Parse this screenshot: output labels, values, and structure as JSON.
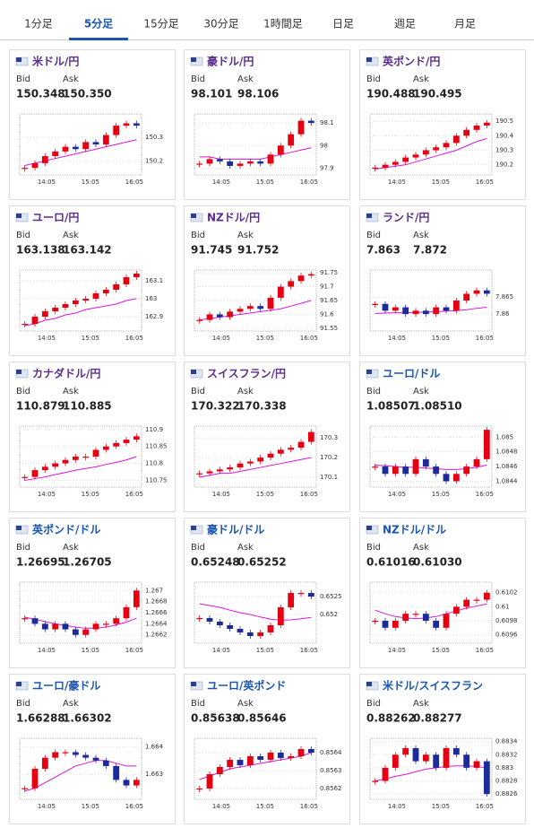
{
  "tabs": [
    "1分足",
    "5分足",
    "15分足",
    "30分足",
    "1時間足",
    "日足",
    "週足",
    "月足"
  ],
  "colors": {
    "up": "#e60012",
    "down": "#1c2a9c",
    "ma": "#d916d9"
  },
  "cards": [
    {
      "name": "米ドル/円",
      "bid_label": "Bid",
      "ask_label": "Ask",
      "bid": "150.348",
      "ask": "150.350",
      "chart": {
        "type": "candlestick",
        "ylim": [
          150.14,
          150.4
        ],
        "yticks": [
          150.2,
          150.3
        ],
        "xticks": [
          "14:05",
          "15:05",
          "16:05"
        ],
        "closes": [
          150.17,
          150.19,
          150.22,
          150.24,
          150.26,
          150.25,
          150.28,
          150.27,
          150.31,
          150.35,
          150.36,
          150.35
        ],
        "ma": [
          150.18,
          150.19,
          150.2,
          150.21,
          150.22,
          150.23,
          150.24,
          150.25,
          150.26,
          150.27,
          150.28,
          150.29
        ]
      }
    },
    {
      "name": "豪ドル/円",
      "bid_label": "Bid",
      "ask_label": "Ask",
      "bid": "98.101",
      "ask": "98.106",
      "chart": {
        "type": "candlestick",
        "ylim": [
          97.87,
          98.14
        ],
        "yticks": [
          97.9,
          98,
          98.1
        ],
        "xticks": [
          "14:05",
          "15:05",
          "16:05"
        ],
        "closes": [
          97.92,
          97.94,
          97.93,
          97.91,
          97.92,
          97.93,
          97.92,
          97.96,
          98.0,
          98.05,
          98.11,
          98.1
        ],
        "ma": [
          97.95,
          97.95,
          97.94,
          97.94,
          97.94,
          97.94,
          97.94,
          97.95,
          97.96,
          97.97,
          97.98,
          97.99
        ]
      }
    },
    {
      "name": "英ポンド/円",
      "bid_label": "Bid",
      "ask_label": "Ask",
      "bid": "190.488",
      "ask": "190.495",
      "chart": {
        "type": "candlestick",
        "ylim": [
          190.13,
          190.55
        ],
        "yticks": [
          190.2,
          190.3,
          190.4,
          190.5
        ],
        "xticks": [
          "14:05",
          "15:05",
          "16:05"
        ],
        "closes": [
          190.18,
          190.2,
          190.22,
          190.25,
          190.27,
          190.3,
          190.32,
          190.35,
          190.4,
          190.44,
          190.47,
          190.49
        ],
        "ma": [
          190.17,
          190.18,
          190.19,
          190.2,
          190.22,
          190.24,
          190.26,
          190.28,
          190.3,
          190.33,
          190.36,
          190.38
        ]
      }
    },
    {
      "name": "ユーロ/円",
      "bid_label": "Bid",
      "ask_label": "Ask",
      "bid": "163.138",
      "ask": "163.142",
      "chart": {
        "type": "candlestick",
        "ylim": [
          162.82,
          163.16
        ],
        "yticks": [
          162.9,
          163,
          163.1
        ],
        "xticks": [
          "14:05",
          "15:05",
          "16:05"
        ],
        "closes": [
          162.86,
          162.9,
          162.93,
          162.95,
          162.97,
          162.99,
          163.0,
          163.03,
          163.05,
          163.08,
          163.12,
          163.14
        ],
        "ma": [
          162.85,
          162.86,
          162.88,
          162.89,
          162.91,
          162.92,
          162.94,
          162.95,
          162.96,
          162.97,
          162.99,
          163.0
        ]
      }
    },
    {
      "name": "NZドル/円",
      "bid_label": "Bid",
      "ask_label": "Ask",
      "bid": "91.745",
      "ask": "91.752",
      "chart": {
        "type": "candlestick",
        "ylim": [
          91.54,
          91.76
        ],
        "yticks": [
          91.55,
          91.6,
          91.65,
          91.7,
          91.75
        ],
        "xticks": [
          "14:05",
          "15:05",
          "16:05"
        ],
        "closes": [
          91.58,
          91.6,
          91.59,
          91.61,
          91.62,
          91.63,
          91.62,
          91.66,
          91.7,
          91.72,
          91.74,
          91.745
        ],
        "ma": [
          91.58,
          91.585,
          91.59,
          91.595,
          91.6,
          91.605,
          91.61,
          91.615,
          91.62,
          91.63,
          91.64,
          91.65
        ]
      }
    },
    {
      "name": "ランド/円",
      "bid_label": "Bid",
      "ask_label": "Ask",
      "bid": "7.863",
      "ask": "7.872",
      "chart": {
        "type": "candlestick",
        "ylim": [
          7.855,
          7.873
        ],
        "yticks": [
          7.86,
          7.865
        ],
        "xticks": [
          "14:05",
          "15:05",
          "16:05"
        ],
        "closes": [
          7.863,
          7.861,
          7.862,
          7.86,
          7.861,
          7.86,
          7.862,
          7.861,
          7.864,
          7.866,
          7.867,
          7.866
        ],
        "ma": [
          7.8602,
          7.8603,
          7.8604,
          7.8604,
          7.8605,
          7.8606,
          7.8607,
          7.8609,
          7.861,
          7.8613,
          7.8617,
          7.862
        ]
      }
    },
    {
      "name": "カナダドル/円",
      "bid_label": "Bid",
      "ask_label": "Ask",
      "bid": "110.879",
      "ask": "110.885",
      "chart": {
        "type": "candlestick",
        "ylim": [
          110.73,
          110.91
        ],
        "yticks": [
          110.75,
          110.8,
          110.85,
          110.9
        ],
        "xticks": [
          "14:05",
          "15:05",
          "16:05"
        ],
        "closes": [
          110.76,
          110.78,
          110.79,
          110.8,
          110.81,
          110.82,
          110.82,
          110.84,
          110.85,
          110.86,
          110.87,
          110.88
        ],
        "ma": [
          110.75,
          110.755,
          110.76,
          110.767,
          110.773,
          110.78,
          110.785,
          110.79,
          110.797,
          110.803,
          110.81,
          110.82
        ]
      }
    },
    {
      "name": "スイスフラン/円",
      "bid_label": "Bid",
      "ask_label": "Ask",
      "bid": "170.322",
      "ask": "170.338",
      "chart": {
        "type": "candlestick",
        "ylim": [
          170.05,
          170.36
        ],
        "yticks": [
          170.1,
          170.2,
          170.3
        ],
        "xticks": [
          "14:05",
          "15:05",
          "16:05"
        ],
        "closes": [
          170.12,
          170.13,
          170.14,
          170.15,
          170.17,
          170.18,
          170.2,
          170.22,
          170.24,
          170.25,
          170.28,
          170.33
        ],
        "ma": [
          170.1,
          170.11,
          170.12,
          170.12,
          170.13,
          170.14,
          170.15,
          170.16,
          170.17,
          170.18,
          170.19,
          170.2
        ]
      }
    },
    {
      "name": "ユーロ/ドル",
      "bid_label": "Bid",
      "ask_label": "Ask",
      "bid": "1.08507",
      "ask": "1.08510",
      "chart": {
        "type": "candlestick",
        "ylim": [
          1.08432,
          1.08515
        ],
        "yticks": [
          1.0844,
          1.0846,
          1.0848,
          1.085
        ],
        "xticks": [
          "14:05",
          "15:05",
          "16:05"
        ],
        "closes": [
          1.0846,
          1.0845,
          1.0846,
          1.0845,
          1.0847,
          1.0846,
          1.0845,
          1.0844,
          1.0845,
          1.0846,
          1.0847,
          1.0851
        ],
        "ma": [
          1.08462,
          1.08461,
          1.0846,
          1.08459,
          1.08459,
          1.08458,
          1.08457,
          1.08456,
          1.08456,
          1.08457,
          1.08459,
          1.08462
        ]
      }
    },
    {
      "name": "英ポンド/ドル",
      "bid_label": "Bid",
      "ask_label": "Ask",
      "bid": "1.26695",
      "ask": "1.26705",
      "chart": {
        "type": "candlestick",
        "ylim": [
          1.26605,
          1.26715
        ],
        "yticks": [
          1.2662,
          1.2664,
          1.2666,
          1.2668,
          1.267
        ],
        "xticks": [
          "14:05",
          "15:05",
          "16:05"
        ],
        "closes": [
          1.2665,
          1.2664,
          1.2663,
          1.2664,
          1.2663,
          1.2662,
          1.2663,
          1.2664,
          1.2664,
          1.2665,
          1.2667,
          1.267
        ],
        "ma": [
          1.26652,
          1.26648,
          1.26644,
          1.2664,
          1.26637,
          1.26634,
          1.26632,
          1.26632,
          1.26634,
          1.26638,
          1.26643,
          1.2665
        ]
      }
    },
    {
      "name": "豪ドル/ドル",
      "bid_label": "Bid",
      "ask_label": "Ask",
      "bid": "0.65248",
      "ask": "0.65252",
      "chart": {
        "type": "candlestick",
        "ylim": [
          0.6512,
          0.6529
        ],
        "yticks": [
          0.652,
          0.6525
        ],
        "xticks": [
          "14:05",
          "15:05",
          "16:05"
        ],
        "closes": [
          0.6519,
          0.6518,
          0.6517,
          0.6516,
          0.6515,
          0.6514,
          0.6515,
          0.6517,
          0.6522,
          0.6526,
          0.6526,
          0.6525
        ],
        "ma": [
          0.6523,
          0.65225,
          0.6522,
          0.65212,
          0.65205,
          0.652,
          0.65193,
          0.65187,
          0.65184,
          0.65185,
          0.65188,
          0.65192
        ]
      }
    },
    {
      "name": "NZドル/ドル",
      "bid_label": "Bid",
      "ask_label": "Ask",
      "bid": "0.61016",
      "ask": "0.61030",
      "chart": {
        "type": "candlestick",
        "ylim": [
          0.60948,
          0.61035
        ],
        "yticks": [
          0.6096,
          0.6098,
          0.61,
          0.6102
        ],
        "xticks": [
          "14:05",
          "15:05",
          "16:05"
        ],
        "closes": [
          0.6098,
          0.6097,
          0.6098,
          0.6099,
          0.6099,
          0.6098,
          0.6097,
          0.6099,
          0.61,
          0.6101,
          0.6101,
          0.6102
        ],
        "ma": [
          0.60995,
          0.6099,
          0.60986,
          0.60984,
          0.60983,
          0.60984,
          0.60986,
          0.6099,
          0.60994,
          0.60998,
          0.61001,
          0.61004
        ]
      }
    },
    {
      "name": "ユーロ/豪ドル",
      "bid_label": "Bid",
      "ask_label": "Ask",
      "bid": "1.66288",
      "ask": "1.66302",
      "chart": {
        "type": "candlestick",
        "ylim": [
          1.6621,
          1.6643
        ],
        "yticks": [
          1.663,
          1.664
        ],
        "xticks": [
          "14:05",
          "15:05",
          "16:05"
        ],
        "closes": [
          1.6625,
          1.6632,
          1.6636,
          1.6638,
          1.6638,
          1.6637,
          1.6636,
          1.6635,
          1.6633,
          1.6628,
          1.6626,
          1.6628
        ],
        "ma": [
          1.6624,
          1.6625,
          1.6627,
          1.6629,
          1.6631,
          1.6633,
          1.6634,
          1.6635,
          1.6635,
          1.6634,
          1.6633,
          1.6633
        ]
      }
    },
    {
      "name": "ユーロ/英ポンド",
      "bid_label": "Bid",
      "ask_label": "Ask",
      "bid": "0.85638",
      "ask": "0.85646",
      "chart": {
        "type": "candlestick",
        "ylim": [
          0.85614,
          0.85648
        ],
        "yticks": [
          0.8562,
          0.8563,
          0.8564
        ],
        "xticks": [
          "14:05",
          "15:05",
          "16:05"
        ],
        "closes": [
          0.8562,
          0.85628,
          0.85632,
          0.85636,
          0.85633,
          0.85638,
          0.85636,
          0.8564,
          0.85637,
          0.85638,
          0.85642,
          0.8564
        ],
        "ma": [
          0.85625,
          0.85627,
          0.85629,
          0.85631,
          0.85632,
          0.85633,
          0.85634,
          0.85635,
          0.85636,
          0.85637,
          0.85638,
          0.8564
        ]
      }
    },
    {
      "name": "米ドル/スイスフラン",
      "bid_label": "Bid",
      "ask_label": "Ask",
      "bid": "0.88262",
      "ask": "0.88277",
      "chart": {
        "type": "candlestick",
        "ylim": [
          0.88252,
          0.88345
        ],
        "yticks": [
          0.8826,
          0.8828,
          0.883,
          0.8832,
          0.8834
        ],
        "xticks": [
          "14:05",
          "15:05",
          "16:05"
        ],
        "closes": [
          0.8828,
          0.883,
          0.8832,
          0.8833,
          0.8831,
          0.8832,
          0.883,
          0.8833,
          0.8832,
          0.883,
          0.8831,
          0.8826
        ],
        "ma": [
          0.8828,
          0.88283,
          0.88287,
          0.8829,
          0.88294,
          0.88298,
          0.883,
          0.88302,
          0.88303,
          0.88303,
          0.88302,
          0.883
        ]
      }
    }
  ]
}
